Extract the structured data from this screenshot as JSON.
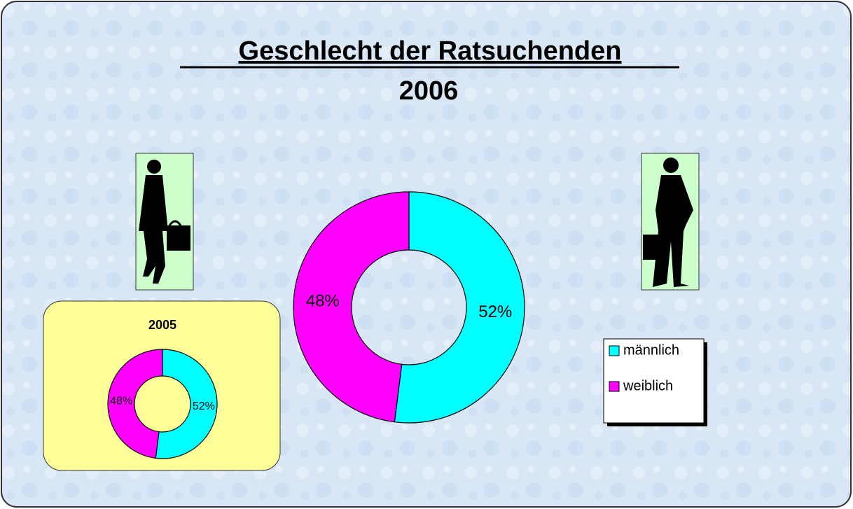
{
  "chart_data": [
    {
      "type": "donut",
      "title": "Geschlecht der Ratsuchenden",
      "subtitle": "2006",
      "categories": [
        "männlich",
        "weiblich"
      ],
      "values": [
        52,
        48
      ],
      "value_labels": [
        "52%",
        "48%"
      ],
      "colors": [
        "#00ffff",
        "#ff00ff"
      ],
      "legend": "right"
    },
    {
      "type": "donut",
      "title": "2005",
      "categories": [
        "männlich",
        "weiblich"
      ],
      "values": [
        52,
        48
      ],
      "value_labels": [
        "52%",
        "48%"
      ],
      "colors": [
        "#00ffff",
        "#ff00ff"
      ]
    }
  ]
}
